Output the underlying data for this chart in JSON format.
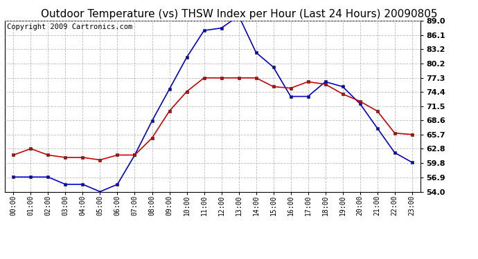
{
  "title": "Outdoor Temperature (vs) THSW Index per Hour (Last 24 Hours) 20090805",
  "copyright": "Copyright 2009 Cartronics.com",
  "hours": [
    "00:00",
    "01:00",
    "02:00",
    "03:00",
    "04:00",
    "05:00",
    "06:00",
    "07:00",
    "08:00",
    "09:00",
    "10:00",
    "11:00",
    "12:00",
    "13:00",
    "14:00",
    "15:00",
    "16:00",
    "17:00",
    "18:00",
    "19:00",
    "20:00",
    "21:00",
    "22:00",
    "23:00"
  ],
  "temp": [
    61.5,
    62.8,
    61.5,
    61.0,
    61.0,
    60.5,
    61.5,
    61.5,
    65.0,
    70.5,
    74.5,
    77.3,
    77.3,
    77.3,
    77.3,
    75.5,
    75.2,
    76.5,
    76.0,
    74.0,
    72.5,
    70.5,
    66.0,
    65.7
  ],
  "thsw": [
    57.0,
    57.0,
    57.0,
    55.5,
    55.5,
    54.0,
    55.5,
    61.5,
    68.5,
    75.0,
    81.5,
    87.0,
    87.5,
    90.0,
    82.5,
    79.5,
    73.5,
    73.5,
    76.5,
    75.5,
    72.0,
    67.0,
    62.0,
    60.0
  ],
  "ylim": [
    54.0,
    89.0
  ],
  "yticks": [
    54.0,
    56.9,
    59.8,
    62.8,
    65.7,
    68.6,
    71.5,
    74.4,
    77.3,
    80.2,
    83.2,
    86.1,
    89.0
  ],
  "temp_color": "#cc0000",
  "thsw_color": "#0000cc",
  "bg_color": "#ffffff",
  "plot_bg": "#ffffff",
  "grid_color": "#bbbbbb",
  "title_fontsize": 11,
  "copyright_fontsize": 7.5,
  "tick_fontsize": 8,
  "xtick_fontsize": 7
}
